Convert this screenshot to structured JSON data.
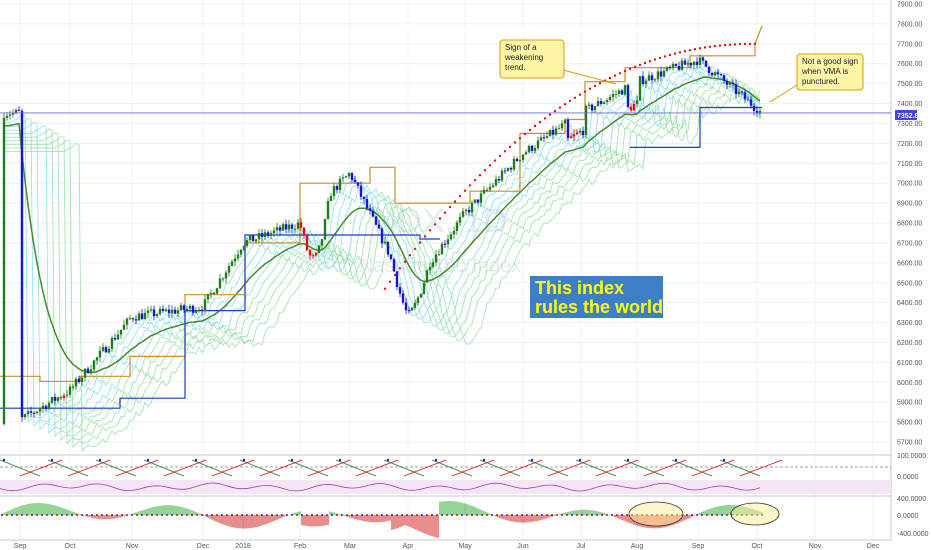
{
  "chart_data": {
    "type": "candlestick",
    "title": "",
    "watermark": {
      "symbol": "NDX, 1D",
      "name": "Nasdaq 100 Index"
    },
    "y_axis": {
      "ylim": [
        5650,
        7900
      ],
      "ticks": [
        "7900.00",
        "7800.00",
        "7700.00",
        "7600.00",
        "7500.00",
        "7400.00",
        "7300.00",
        "7200.00",
        "7100.00",
        "7000.00",
        "6900.00",
        "6800.00",
        "6700.00",
        "6600.00",
        "6500.00",
        "6400.00",
        "6300.00",
        "6200.00",
        "6100.00",
        "6000.00",
        "5900.00",
        "5800.00",
        "5700.00"
      ],
      "position": "right"
    },
    "x_axis": {
      "ticks": [
        "Sep",
        "Oct",
        "Nov",
        "Dec",
        "2018",
        "Feb",
        "Mar",
        "Apr",
        "May",
        "Jun",
        "Jul",
        "Aug",
        "Sep",
        "Oct",
        "Nov",
        "Dec"
      ]
    },
    "last_price_label": "7352.82",
    "last_price": 7352.82,
    "colors": {
      "up_candle": "#1e7d1e",
      "down_candle": "#1515d6",
      "red_candle": "#e01010",
      "envelope_band": "#8fe0a0",
      "cyan_band": "#7fdcec",
      "gold_step": "#c8902a",
      "blue_step": "#1a3cc8",
      "vma": "#4a8a2a",
      "red_dotted": "#e01010",
      "price_line": "#6a6adf",
      "banner_bg": "#3d7fc7",
      "banner_text": "#ffff00",
      "note_bg": "#fff5a6",
      "note_border": "#d6a000"
    },
    "annotations": {
      "note1": "Sign of a weakening trend.",
      "note2": "Not a good sign when VMA is punctured.",
      "banner_line1": "This index",
      "banner_line2": "rules the world"
    },
    "series_approx": {
      "months": [
        "Sep",
        "Oct",
        "Nov",
        "Dec",
        "2018",
        "Feb",
        "Mar",
        "Apr",
        "May",
        "Jun",
        "Jul",
        "Aug",
        "Sep",
        "Oct"
      ],
      "close": [
        5810,
        5960,
        6330,
        6380,
        6700,
        6800,
        7050,
        6450,
        6850,
        7150,
        7350,
        7510,
        7620,
        7352.82
      ]
    },
    "lower_panel_1": {
      "ticks": [
        "100.0000",
        "0.0000"
      ]
    },
    "lower_panel_2": {
      "ticks": [
        "400.0000",
        "0.0000",
        "-400.0000"
      ],
      "highlights": [
        "Aug",
        "Oct"
      ]
    },
    "grid": true,
    "legend": "none"
  }
}
